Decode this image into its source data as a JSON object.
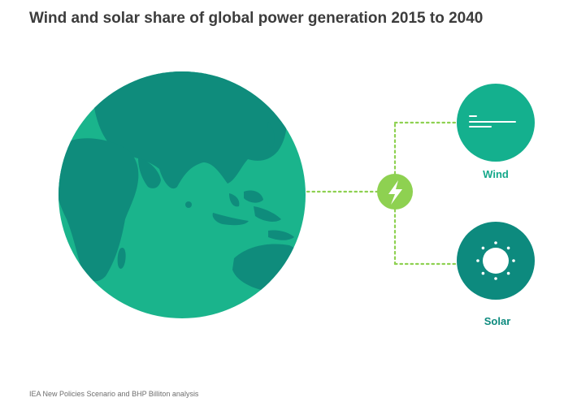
{
  "title": "Wind and solar share of global power generation 2015 to 2040",
  "source": "IEA New Policies Scenario and BHP Billiton analysis",
  "nodes": {
    "globe": {
      "icon": "globe-icon"
    },
    "hub": {
      "icon": "lightning-bolt-icon"
    },
    "wind": {
      "label": "Wind",
      "icon": "wind-lines-icon"
    },
    "solar": {
      "label": "Solar",
      "icon": "sun-icon"
    }
  },
  "colors": {
    "globe_ocean": "#1ab48c",
    "globe_land": "#0f8c7c",
    "wind_circle": "#14b08e",
    "solar_circle": "#0d8a7e",
    "hub": "#8ed151",
    "connector": "#8ed151",
    "wind_label": "#14a88a",
    "solar_label": "#0d8a7e",
    "title": "#3c3c3c",
    "source": "#6e6e6e"
  }
}
